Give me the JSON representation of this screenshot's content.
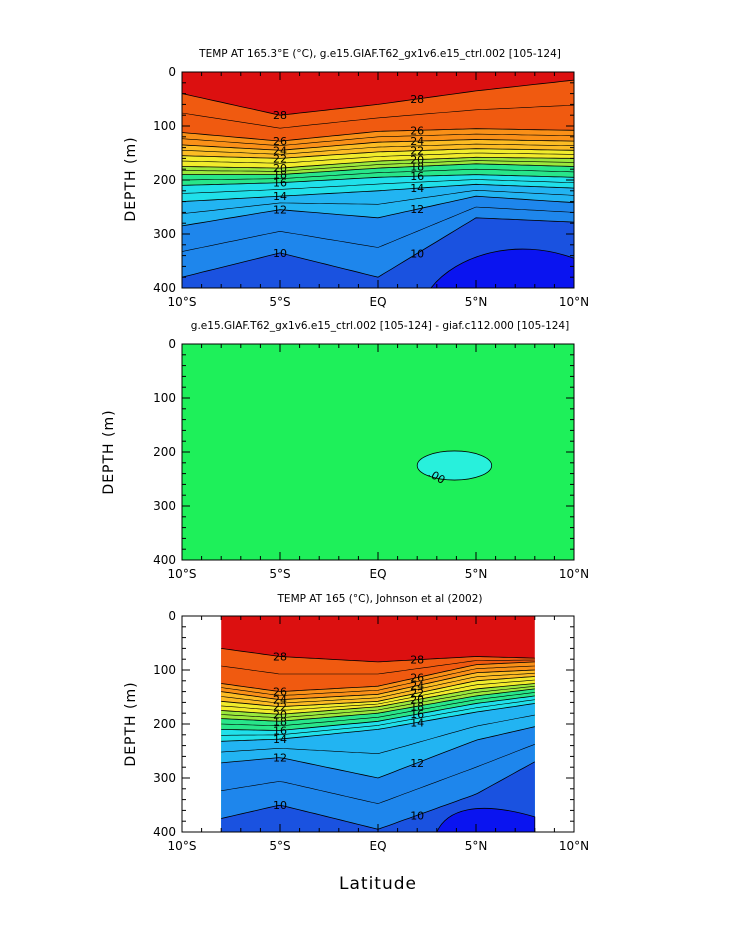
{
  "figure": {
    "xlabel": "Latitude",
    "ylabel": "DEPTH (m)",
    "x_ticks": [
      "10°S",
      "5°S",
      "EQ",
      "5°N",
      "10°N"
    ],
    "y_ticks": [
      "0",
      "100",
      "200",
      "300",
      "400"
    ]
  },
  "chart_data": [
    {
      "type": "heatmap",
      "title": "TEMP AT 165.3°E (°C), g.e15.GIAF.T62_gx1v6.e15_ctrl.002 [105-124]",
      "xlim": [
        -10,
        10
      ],
      "ylim": [
        400,
        0
      ],
      "x_values": [
        -10,
        -5,
        0,
        5,
        10
      ],
      "isotherm_depths": [
        {
          "temp": 28,
          "depths": [
            40,
            80,
            60,
            35,
            15
          ]
        },
        {
          "temp": 26,
          "depths": [
            112,
            128,
            110,
            105,
            108
          ]
        },
        {
          "temp": 24,
          "depths": [
            135,
            145,
            130,
            125,
            128
          ]
        },
        {
          "temp": 22,
          "depths": [
            155,
            160,
            148,
            142,
            145
          ]
        },
        {
          "temp": 20,
          "depths": [
            175,
            178,
            165,
            158,
            160
          ]
        },
        {
          "temp": 18,
          "depths": [
            190,
            190,
            178,
            170,
            175
          ]
        },
        {
          "temp": 16,
          "depths": [
            210,
            205,
            195,
            190,
            195
          ]
        },
        {
          "temp": 14,
          "depths": [
            240,
            230,
            220,
            208,
            215
          ]
        },
        {
          "temp": 12,
          "depths": [
            285,
            255,
            270,
            230,
            242
          ]
        },
        {
          "temp": 10,
          "depths": [
            380,
            335,
            380,
            270,
            278
          ]
        }
      ],
      "contour_labels": [
        "28",
        "26",
        "24",
        "22",
        "20",
        "18",
        "16",
        "14",
        "12",
        "10"
      ]
    },
    {
      "type": "heatmap",
      "title": "g.e15.GIAF.T62_gx1v6.e15_ctrl.002 [105-124] - giaf.c112.000 [105-124]",
      "xlim": [
        -10,
        10
      ],
      "ylim": [
        400,
        0
      ],
      "background_value": 0,
      "anomaly": {
        "label": ".00",
        "lat_range": [
          2,
          5.8
        ],
        "depth_range": [
          198,
          252
        ]
      }
    },
    {
      "type": "heatmap",
      "title": "TEMP AT 165 (°C), Johnson et al (2002)",
      "xlim": [
        -10,
        10
      ],
      "ylim": [
        400,
        0
      ],
      "data_lat_range": [
        -8,
        8
      ],
      "x_values": [
        -8,
        -5,
        0,
        5,
        8
      ],
      "isotherm_depths": [
        {
          "temp": 28,
          "depths": [
            60,
            75,
            85,
            75,
            78
          ]
        },
        {
          "temp": 26,
          "depths": [
            125,
            140,
            130,
            90,
            85
          ]
        },
        {
          "temp": 24,
          "depths": [
            140,
            155,
            145,
            105,
            100
          ]
        },
        {
          "temp": 22,
          "depths": [
            158,
            168,
            158,
            120,
            112
          ]
        },
        {
          "temp": 20,
          "depths": [
            175,
            182,
            168,
            135,
            125
          ]
        },
        {
          "temp": 18,
          "depths": [
            190,
            195,
            180,
            148,
            135
          ]
        },
        {
          "temp": 16,
          "depths": [
            210,
            212,
            195,
            162,
            148
          ]
        },
        {
          "temp": 14,
          "depths": [
            232,
            228,
            210,
            178,
            162
          ]
        },
        {
          "temp": 12,
          "depths": [
            272,
            262,
            300,
            230,
            205
          ]
        },
        {
          "temp": 10,
          "depths": [
            375,
            350,
            395,
            330,
            270
          ]
        }
      ],
      "contour_labels": [
        "28",
        "26",
        "24",
        "22",
        "20",
        "18",
        "16",
        "14",
        "12",
        "10"
      ]
    }
  ],
  "colors": {
    "t10": "#1a52e0",
    "t12": "#1e86ec",
    "t14": "#22b4f2",
    "t16": "#20e0ea",
    "t18": "#28e68a",
    "t20": "#9be83c",
    "t22": "#f2ec2c",
    "t24": "#fcbc24",
    "t26": "#fa9018",
    "t28": "#f05a10",
    "t30": "#dc1010",
    "deep": "#0a14f0",
    "zero": "#1ef05a",
    "anomaly": "#28f0dc"
  }
}
